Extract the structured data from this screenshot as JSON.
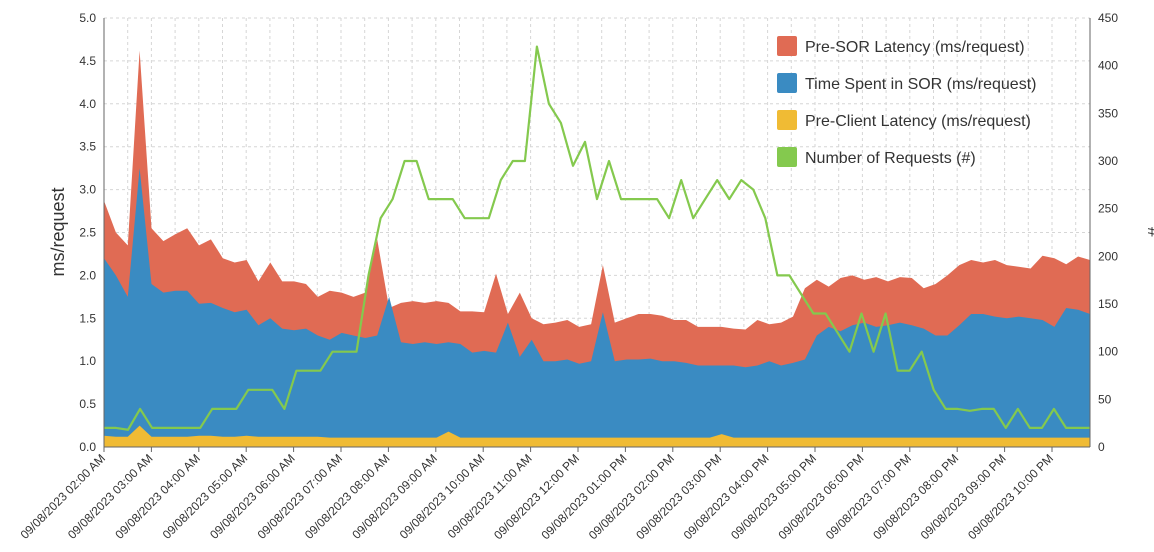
{
  "chart_data": {
    "type": "area",
    "x_labels": [
      "09/08/2023 02:00 AM",
      "09/08/2023 03:00 AM",
      "09/08/2023 04:00 AM",
      "09/08/2023 05:00 AM",
      "09/08/2023 06:00 AM",
      "09/08/2023 07:00 AM",
      "09/08/2023 08:00 AM",
      "09/08/2023 09:00 AM",
      "09/08/2023 10:00 AM",
      "09/08/2023 11:00 AM",
      "09/08/2023 12:00 PM",
      "09/08/2023 01:00 PM",
      "09/08/2023 02:00 PM",
      "09/08/2023 03:00 PM",
      "09/08/2023 04:00 PM",
      "09/08/2023 05:00 PM",
      "09/08/2023 06:00 PM",
      "09/08/2023 07:00 PM",
      "09/08/2023 08:00 PM",
      "09/08/2023 09:00 PM",
      "09/08/2023 10:00 PM"
    ],
    "ylabel": "ms/request",
    "y2label": "#",
    "ylim": [
      0,
      5.0
    ],
    "y2lim": [
      0,
      450
    ],
    "y_ticks": [
      "0.0",
      "0.5",
      "1.0",
      "1.5",
      "2.0",
      "2.5",
      "3.0",
      "3.5",
      "4.0",
      "4.5",
      "5.0"
    ],
    "y2_ticks": [
      "0",
      "50",
      "100",
      "150",
      "200",
      "250",
      "300",
      "350",
      "400",
      "450"
    ],
    "grid": true,
    "legend_position": "top-right",
    "series": [
      {
        "name": "Pre-Client Latency (ms/request)",
        "color": "#f0bb34",
        "axis": "left",
        "values": [
          0.13,
          0.12,
          0.12,
          0.25,
          0.12,
          0.12,
          0.12,
          0.12,
          0.13,
          0.13,
          0.12,
          0.12,
          0.13,
          0.12,
          0.12,
          0.12,
          0.12,
          0.12,
          0.12,
          0.11,
          0.11,
          0.11,
          0.11,
          0.11,
          0.11,
          0.11,
          0.11,
          0.11,
          0.11,
          0.18,
          0.11,
          0.11,
          0.11,
          0.11,
          0.11,
          0.11,
          0.11,
          0.11,
          0.11,
          0.11,
          0.11,
          0.11,
          0.11,
          0.11,
          0.11,
          0.11,
          0.11,
          0.11,
          0.11,
          0.11,
          0.11,
          0.11,
          0.15,
          0.11,
          0.11,
          0.11,
          0.11,
          0.11,
          0.11,
          0.11,
          0.11,
          0.11,
          0.11,
          0.11,
          0.11,
          0.11,
          0.11,
          0.11,
          0.11,
          0.11,
          0.11,
          0.11,
          0.11,
          0.11,
          0.11,
          0.11,
          0.11,
          0.11,
          0.11,
          0.11,
          0.11,
          0.11,
          0.11,
          0.11,
          0.11,
          0.12,
          0.12,
          0.12,
          0.12,
          0.12,
          0.12,
          0.12,
          0.12,
          0.12,
          0.12,
          0.12,
          0.12,
          0.12,
          0.12,
          0.12,
          0.12,
          0.12,
          0.12,
          0.12,
          0.12,
          0.12,
          0.12,
          0.12,
          0.12,
          0.12,
          0.12,
          0.12,
          0.12,
          0.12,
          0.12,
          0.12,
          0.12,
          0.12,
          0.12,
          0.12,
          0.12,
          0.12,
          0.12,
          0.12,
          0.12,
          0.12,
          0.12,
          0.12
        ]
      },
      {
        "name": "Time Spent in SOR (ms/request)",
        "color": "#3a8bc2",
        "axis": "left",
        "values": []
      },
      {
        "name": "Pre-SOR Latency (ms/request)",
        "color": "#e06b54",
        "axis": "left",
        "values": []
      },
      {
        "name": "Number of Requests (#)",
        "color": "#84c94e",
        "axis": "right",
        "values": []
      }
    ],
    "points": {
      "cumulative_sor_top": [
        2.2,
        2.0,
        1.75,
        3.25,
        1.9,
        1.8,
        1.82,
        1.82,
        1.67,
        1.68,
        1.62,
        1.57,
        1.6,
        1.42,
        1.5,
        1.38,
        1.36,
        1.38,
        1.3,
        1.25,
        1.33,
        1.3,
        1.27,
        1.3,
        1.75,
        1.22,
        1.2,
        1.22,
        1.2,
        1.22,
        1.2,
        1.1,
        1.12,
        1.1,
        1.45,
        1.05,
        1.25,
        1.0,
        1.0,
        1.02,
        0.97,
        1.0,
        1.57,
        1.0,
        1.02,
        1.02,
        1.03,
        1.0,
        1.0,
        0.98,
        0.95,
        0.95,
        0.95,
        0.95,
        0.93,
        0.95,
        1.0,
        0.95,
        0.98,
        1.02,
        1.3,
        1.4,
        1.35,
        1.42,
        1.45,
        1.4,
        1.42,
        1.45,
        1.42,
        1.38,
        1.3,
        1.3,
        1.42,
        1.55,
        1.55,
        1.52,
        1.5,
        1.52,
        1.5,
        1.48,
        1.4,
        1.62,
        1.6,
        1.55,
        1.6,
        1.57
      ],
      "cumulative_total_top": [
        2.87,
        2.5,
        2.35,
        4.62,
        2.55,
        2.4,
        2.48,
        2.55,
        2.35,
        2.42,
        2.2,
        2.15,
        2.18,
        1.93,
        2.15,
        1.93,
        1.93,
        1.9,
        1.75,
        1.82,
        1.8,
        1.75,
        1.8,
        2.42,
        1.62,
        1.68,
        1.7,
        1.68,
        1.7,
        1.68,
        1.58,
        1.58,
        1.57,
        2.02,
        1.55,
        1.8,
        1.5,
        1.43,
        1.45,
        1.48,
        1.4,
        1.43,
        2.12,
        1.45,
        1.5,
        1.55,
        1.55,
        1.53,
        1.48,
        1.48,
        1.4,
        1.4,
        1.4,
        1.38,
        1.37,
        1.48,
        1.43,
        1.45,
        1.52,
        1.85,
        1.95,
        1.87,
        1.97,
        2.0,
        1.95,
        1.98,
        1.93,
        1.98,
        1.97,
        1.85,
        1.9,
        2.0,
        2.12,
        2.18,
        2.15,
        2.18,
        2.12,
        2.1,
        2.08,
        2.23,
        2.2,
        2.13,
        2.22,
        2.18
      ],
      "requests": [
        20,
        20,
        18,
        40,
        20,
        20,
        20,
        20,
        20,
        40,
        40,
        40,
        60,
        60,
        60,
        40,
        80,
        80,
        80,
        100,
        100,
        100,
        180,
        240,
        260,
        300,
        300,
        260,
        260,
        260,
        240,
        240,
        240,
        280,
        300,
        300,
        420,
        360,
        340,
        295,
        320,
        260,
        300,
        260,
        260,
        260,
        260,
        240,
        280,
        240,
        260,
        280,
        260,
        280,
        270,
        240,
        180,
        180,
        160,
        140,
        140,
        120,
        100,
        140,
        100,
        140,
        80,
        80,
        100,
        60,
        40,
        40,
        38,
        40,
        40,
        20,
        40,
        20,
        20,
        40,
        20,
        20,
        20
      ]
    }
  },
  "legend": [
    {
      "label": "Pre-SOR Latency (ms/request)",
      "color": "#e06b54"
    },
    {
      "label": "Time Spent in SOR (ms/request)",
      "color": "#3a8bc2"
    },
    {
      "label": "Pre-Client Latency (ms/request)",
      "color": "#f0bb34"
    },
    {
      "label": "Number of Requests (#)",
      "color": "#84c94e"
    }
  ],
  "colors": {
    "pre_sor": "#e06b54",
    "sor": "#3a8bc2",
    "pre_client": "#f0bb34",
    "requests": "#84c94e",
    "grid": "#d6d6d6",
    "axis": "#666666",
    "text": "#333333"
  }
}
